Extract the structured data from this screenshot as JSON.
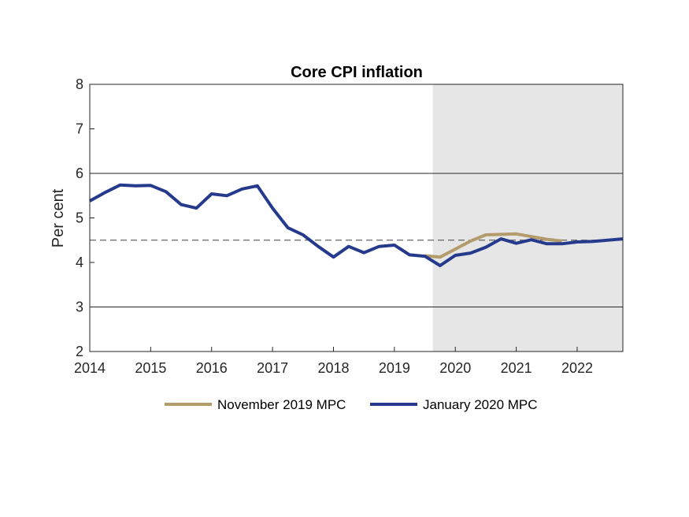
{
  "chart_data": {
    "type": "line",
    "title": "Core CPI inflation",
    "xlabel": "",
    "ylabel": "Per cent",
    "xlim": [
      2014,
      2022.75
    ],
    "ylim": [
      2,
      8
    ],
    "xticks": [
      2014,
      2015,
      2016,
      2017,
      2018,
      2019,
      2020,
      2021,
      2022
    ],
    "yticks": [
      2,
      3,
      4,
      5,
      6,
      7,
      8
    ],
    "forecast_shade_start": 2019.63,
    "target_band": [
      3,
      6
    ],
    "target_mid": 4.5,
    "legend_position": "bottom",
    "series": [
      {
        "name": "November 2019 MPC",
        "color": "#b39b6b",
        "x": [
          2019.5,
          2019.75,
          2020.0,
          2020.25,
          2020.5,
          2020.75,
          2021.0,
          2021.25,
          2021.5,
          2021.75
        ],
        "values": [
          4.15,
          4.12,
          4.3,
          4.48,
          4.62,
          4.63,
          4.64,
          4.58,
          4.52,
          4.48
        ]
      },
      {
        "name": "January 2020 MPC",
        "color": "#253a8c",
        "x": [
          2014.0,
          2014.25,
          2014.5,
          2014.75,
          2015.0,
          2015.25,
          2015.5,
          2015.75,
          2016.0,
          2016.25,
          2016.5,
          2016.75,
          2017.0,
          2017.25,
          2017.5,
          2017.75,
          2018.0,
          2018.25,
          2018.5,
          2018.75,
          2019.0,
          2019.25,
          2019.5,
          2019.75,
          2020.0,
          2020.25,
          2020.5,
          2020.75,
          2021.0,
          2021.25,
          2021.5,
          2021.75,
          2022.0,
          2022.25,
          2022.5,
          2022.75
        ],
        "values": [
          5.38,
          5.57,
          5.74,
          5.72,
          5.73,
          5.59,
          5.3,
          5.22,
          5.54,
          5.5,
          5.65,
          5.72,
          5.22,
          4.78,
          4.62,
          4.36,
          4.12,
          4.36,
          4.22,
          4.36,
          4.39,
          4.17,
          4.14,
          3.93,
          4.16,
          4.21,
          4.34,
          4.53,
          4.43,
          4.51,
          4.42,
          4.42,
          4.46,
          4.47,
          4.5,
          4.53
        ]
      }
    ]
  }
}
